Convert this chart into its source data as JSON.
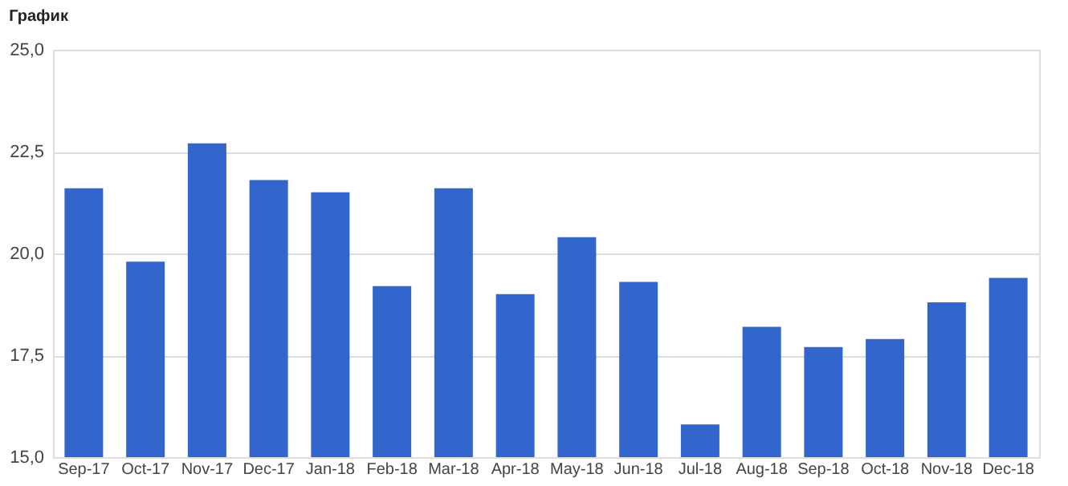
{
  "chart_data": {
    "type": "bar",
    "title": "График",
    "categories": [
      "Sep-17",
      "Oct-17",
      "Nov-17",
      "Dec-17",
      "Jan-18",
      "Feb-18",
      "Mar-18",
      "Apr-18",
      "May-18",
      "Jun-18",
      "Jul-18",
      "Aug-18",
      "Sep-18",
      "Oct-18",
      "Nov-18",
      "Dec-18"
    ],
    "values": [
      21.6,
      19.8,
      22.7,
      21.8,
      21.5,
      19.2,
      21.6,
      19.0,
      20.4,
      19.3,
      15.8,
      18.2,
      17.7,
      17.9,
      18.8,
      19.4
    ],
    "color": "#3366cc",
    "ylim": [
      15,
      25
    ],
    "yticks": [
      {
        "value": 15,
        "label": "15,0"
      },
      {
        "value": 17.5,
        "label": "17,5"
      },
      {
        "value": 20,
        "label": "20,0"
      },
      {
        "value": 22.5,
        "label": "22,5"
      },
      {
        "value": 25,
        "label": "25,0"
      }
    ],
    "grid": "y"
  }
}
